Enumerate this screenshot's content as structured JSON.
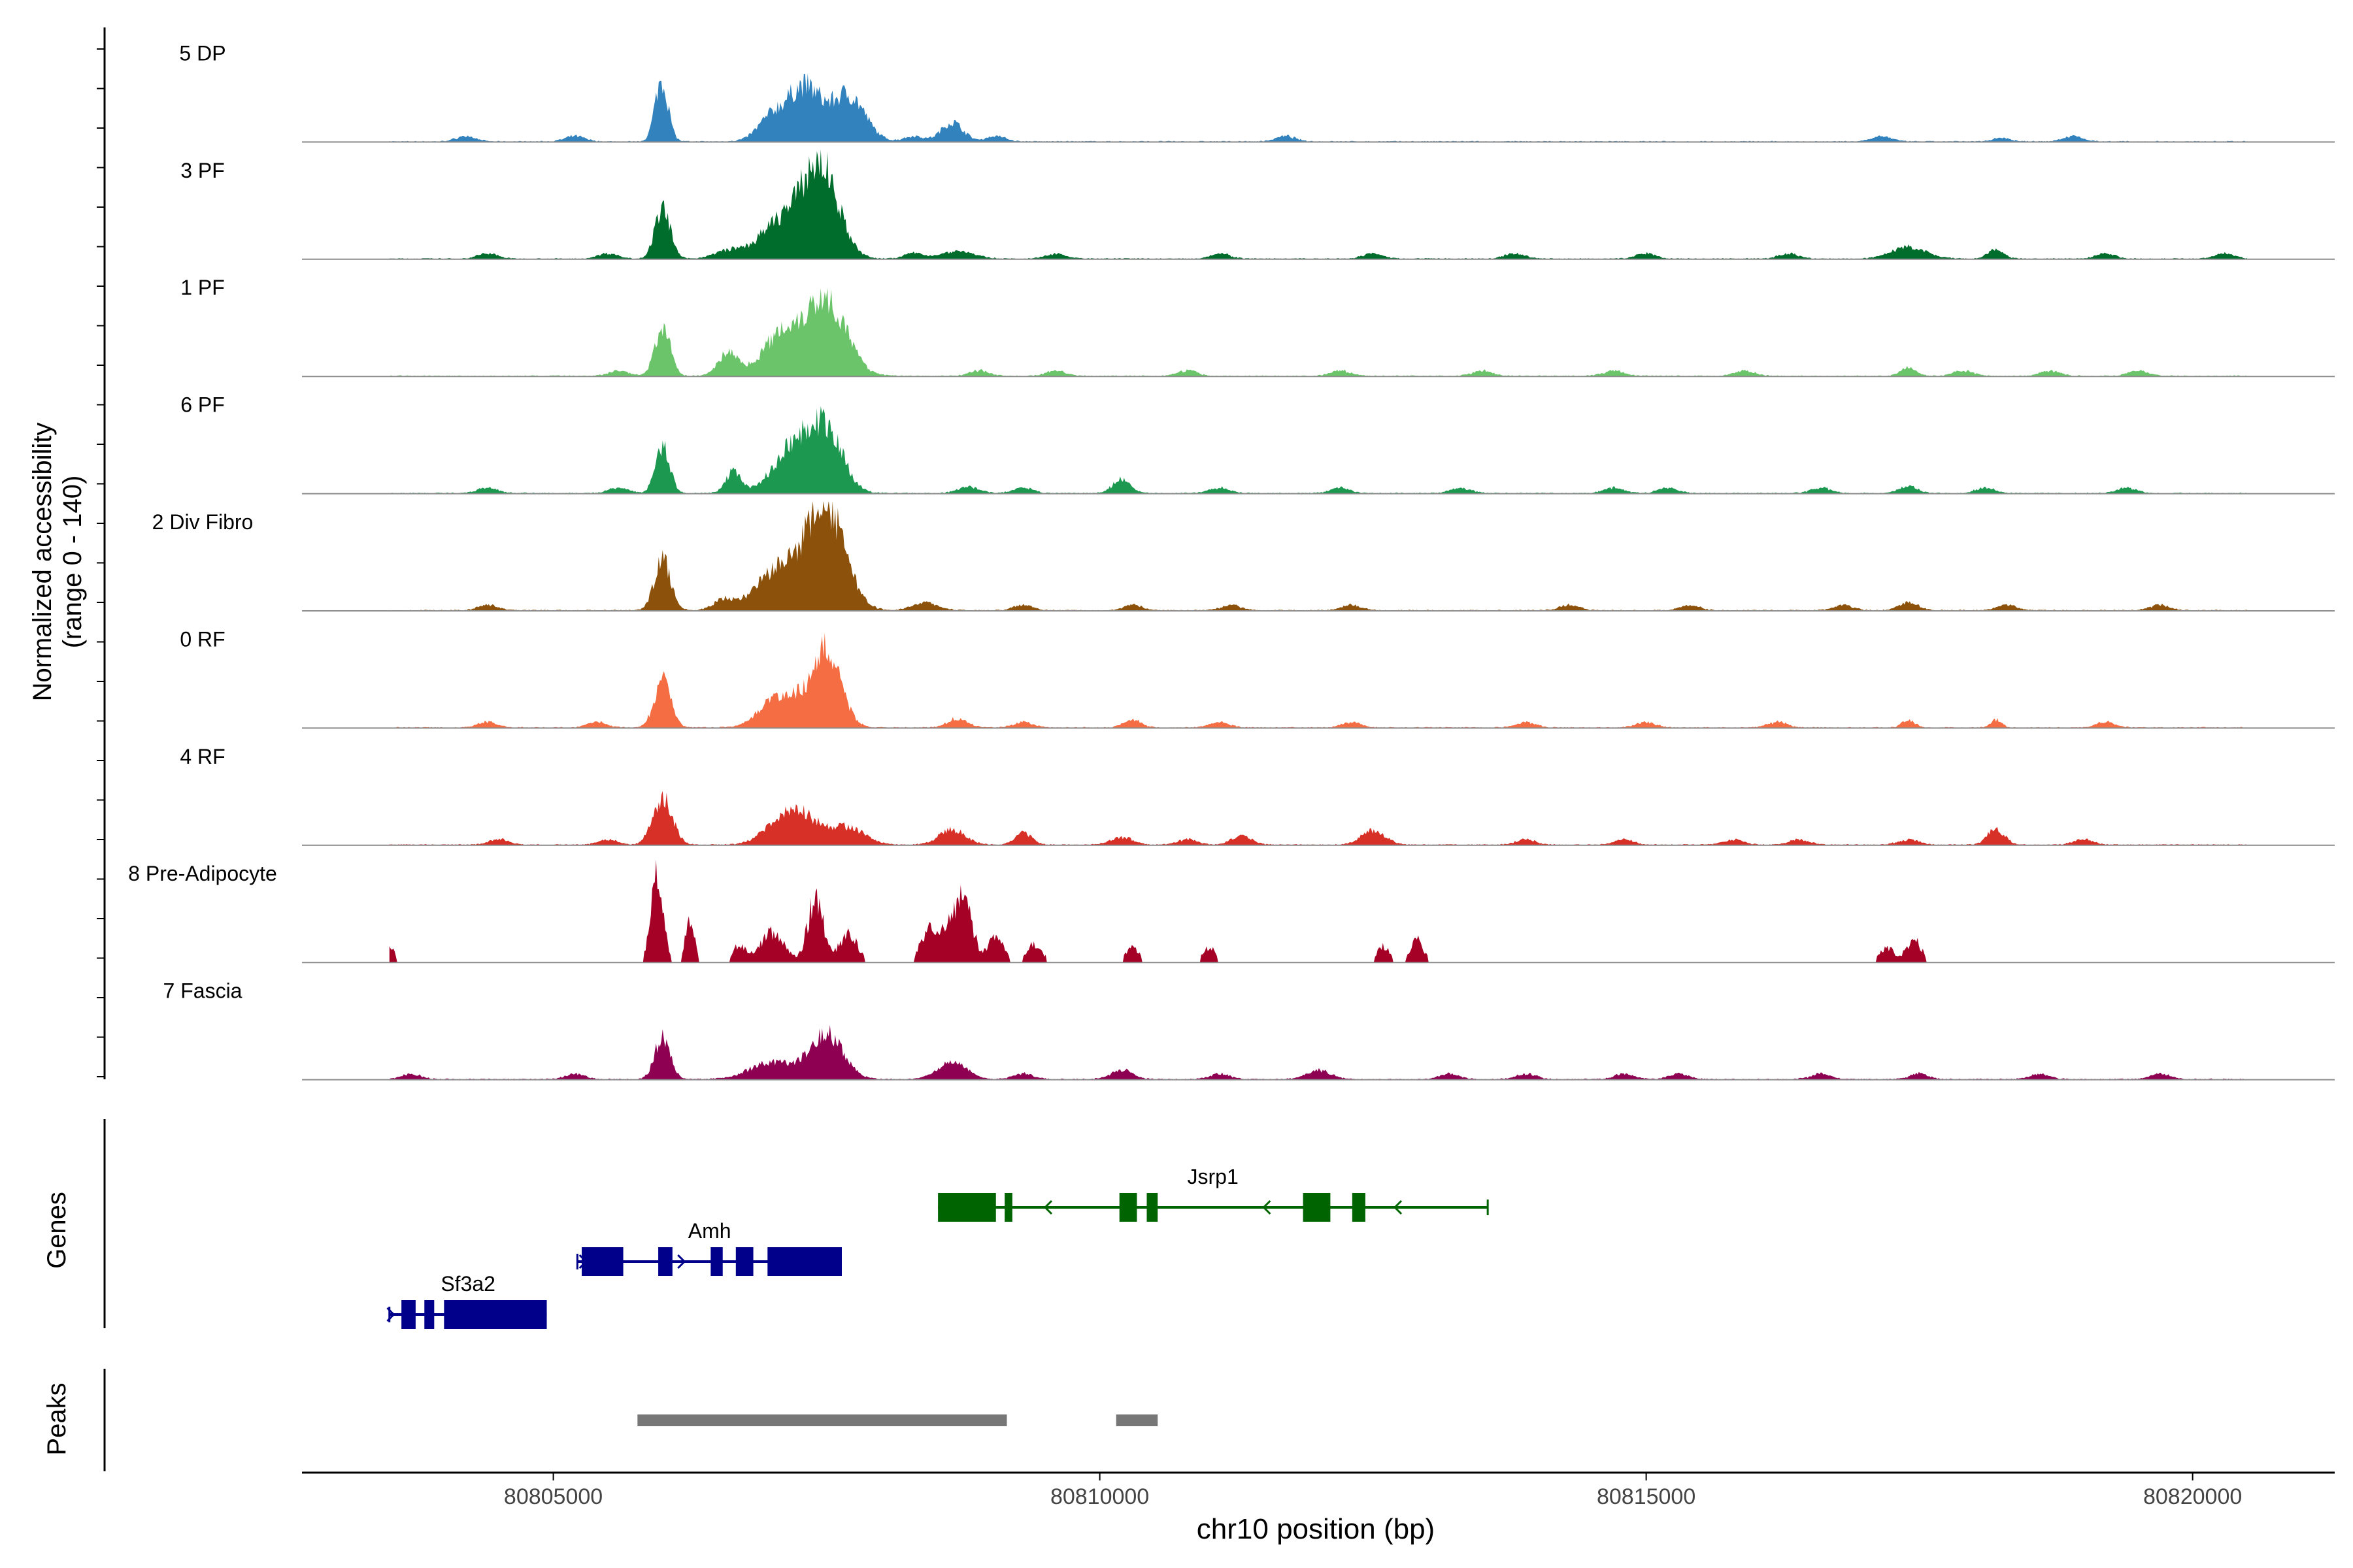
{
  "chart_data": {
    "type": "area",
    "title": "",
    "genome": "chr10",
    "xlabel": "chr10 position (bp)",
    "xlim": [
      80802700,
      80821300
    ],
    "xticks": [
      80805000,
      80810000,
      80815000,
      80820000
    ],
    "xtick_labels": [
      "80805000",
      "80810000",
      "80815000",
      "80820000"
    ],
    "coverage_ylabel": "Normalized accessibility",
    "coverage_ylabel_range": "(range 0 - 140)",
    "ylim": [
      0,
      140
    ],
    "genes_label": "Genes",
    "peaks_label": "Peaks",
    "tracks": [
      {
        "name": "5 DP",
        "color": "#3182BD",
        "peaks": [
          [
            80805990,
            80,
            60
          ],
          [
            80807000,
            30,
            130
          ],
          [
            80807300,
            70,
            150
          ],
          [
            80807700,
            60,
            150
          ],
          [
            80808650,
            25,
            100
          ],
          [
            80818250,
            5,
            80
          ]
        ],
        "bumps": [
          80804200,
          80805200,
          80808300,
          80809050,
          80811700,
          80817150,
          80818900
        ]
      },
      {
        "name": "3 PF",
        "color": "#006D2C",
        "peaks": [
          [
            80806000,
            65,
            70
          ],
          [
            80806600,
            10,
            130
          ],
          [
            80807100,
            50,
            200
          ],
          [
            80807450,
            115,
            160
          ],
          [
            80808700,
            10,
            150
          ],
          [
            80817400,
            15,
            160
          ],
          [
            80818200,
            12,
            70
          ]
        ],
        "bumps": [
          80804400,
          80805500,
          80808300,
          80809600,
          80811100,
          80812500,
          80813800,
          80815000,
          80816300,
          80819200,
          80820300
        ]
      },
      {
        "name": "1 PF",
        "color": "#6BC46A",
        "peaks": [
          [
            80806000,
            65,
            70
          ],
          [
            80806600,
            30,
            90
          ],
          [
            80807100,
            55,
            180
          ],
          [
            80807500,
            98,
            180
          ],
          [
            80817400,
            12,
            70
          ]
        ],
        "bumps": [
          80805600,
          80808900,
          80809600,
          80810800,
          80812200,
          80813500,
          80814700,
          80815900,
          80817900,
          80818700,
          80819500
        ]
      },
      {
        "name": "6 PF",
        "color": "#1C9850",
        "peaks": [
          [
            80806000,
            62,
            65
          ],
          [
            80806650,
            28,
            70
          ],
          [
            80807200,
            60,
            180
          ],
          [
            80807500,
            75,
            150
          ],
          [
            80810200,
            18,
            80
          ],
          [
            80808800,
            8,
            100
          ],
          [
            80817400,
            10,
            80
          ]
        ],
        "bumps": [
          80804400,
          80805600,
          80809300,
          80811100,
          80812200,
          80813300,
          80814700,
          80815200,
          80816600,
          80818100,
          80819400
        ]
      },
      {
        "name": "2 Div Fibro",
        "color": "#8C510A",
        "peaks": [
          [
            80806000,
            65,
            75
          ],
          [
            80807100,
            55,
            230
          ],
          [
            80807500,
            128,
            170
          ],
          [
            80806550,
            12,
            90
          ],
          [
            80808400,
            10,
            120
          ],
          [
            80817400,
            10,
            90
          ]
        ],
        "bumps": [
          80804400,
          80809300,
          80810300,
          80811200,
          80812300,
          80814300,
          80815400,
          80816800,
          80818300,
          80819700
        ]
      },
      {
        "name": "0 RF",
        "color": "#F46D43",
        "peaks": [
          [
            80806000,
            62,
            75
          ],
          [
            80807100,
            45,
            180
          ],
          [
            80807500,
            98,
            130
          ],
          [
            80808700,
            12,
            90
          ],
          [
            80810300,
            10,
            80
          ],
          [
            80817400,
            10,
            60
          ],
          [
            80818200,
            10,
            50
          ]
        ],
        "bumps": [
          80804400,
          80805400,
          80809300,
          80811100,
          80812300,
          80813900,
          80815000,
          80816200,
          80819200
        ]
      },
      {
        "name": "4 RF",
        "color": "#D73027",
        "peaks": [
          [
            80806000,
            60,
            90
          ],
          [
            80807200,
            48,
            200
          ],
          [
            80807700,
            22,
            150
          ],
          [
            80808650,
            20,
            120
          ],
          [
            80809300,
            15,
            80
          ],
          [
            80810200,
            10,
            100
          ],
          [
            80811300,
            12,
            90
          ],
          [
            80812500,
            18,
            110
          ],
          [
            80818200,
            20,
            80
          ]
        ],
        "bumps": [
          80804500,
          80805500,
          80810800,
          80813900,
          80814800,
          80815800,
          80816400,
          80817400,
          80819000
        ]
      },
      {
        "name": "8 Pre-Adipocyte",
        "color": "#A50026",
        "peaks": [
          [
            80803500,
            25,
            40
          ],
          [
            80805950,
            120,
            55
          ],
          [
            80806250,
            60,
            40
          ],
          [
            80806700,
            22,
            60
          ],
          [
            80807000,
            40,
            110
          ],
          [
            80807400,
            88,
            70
          ],
          [
            80807700,
            40,
            80
          ],
          [
            80808550,
            45,
            90
          ],
          [
            80808750,
            90,
            80
          ],
          [
            80808400,
            28,
            60
          ],
          [
            80809050,
            35,
            70
          ],
          [
            80809400,
            25,
            70
          ],
          [
            80810300,
            20,
            60
          ],
          [
            80811000,
            20,
            60
          ],
          [
            80812600,
            22,
            60
          ],
          [
            80812900,
            30,
            60
          ],
          [
            80817200,
            20,
            70
          ],
          [
            80817450,
            30,
            70
          ]
        ],
        "bumps": [
          80804100,
          80804700,
          80805550,
          80809900,
          80811300,
          80812200,
          80814300,
          80814600,
          80818600,
          80818900
        ]
      },
      {
        "name": "7 Fascia",
        "color": "#8E0152",
        "peaks": [
          [
            80806000,
            55,
            70
          ],
          [
            80807000,
            22,
            200
          ],
          [
            80807500,
            60,
            150
          ],
          [
            80808650,
            22,
            130
          ],
          [
            80810200,
            12,
            100
          ],
          [
            80812000,
            12,
            110
          ],
          [
            80817500,
            8,
            80
          ]
        ],
        "bumps": [
          80803700,
          80805200,
          80809300,
          80811100,
          80813200,
          80813900,
          80814800,
          80815300,
          80816600,
          80818600,
          80819700
        ]
      }
    ],
    "genes": [
      {
        "name": "Jsrp1",
        "color": "#006400",
        "strand": "-",
        "start": 80808520,
        "end": 80813550,
        "exons": [
          [
            80808520,
            80809050
          ],
          [
            80809130,
            80809200
          ],
          [
            80810180,
            80810340
          ],
          [
            80810430,
            80810530
          ],
          [
            80811860,
            80812110
          ],
          [
            80812310,
            80812430
          ]
        ],
        "arrows": [
          80809500,
          80811500,
          80812700
        ]
      },
      {
        "name": "Amh",
        "color": "#00008B",
        "strand": "+",
        "start": 80805220,
        "end": 80807640,
        "exons": [
          [
            80805260,
            80805640
          ],
          [
            80805960,
            80806090
          ],
          [
            80806440,
            80806550
          ],
          [
            80806670,
            80806830
          ],
          [
            80806960,
            80807640
          ]
        ],
        "arrows": [
          80805300,
          80806200
        ]
      },
      {
        "name": "Sf3a2",
        "color": "#00008B",
        "strand": "+",
        "start": 80803500,
        "end": 80804940,
        "exons": [
          [
            80803610,
            80803740
          ],
          [
            80803820,
            80803910
          ],
          [
            80804000,
            80804940
          ]
        ],
        "arrows": [
          80803540
        ]
      }
    ],
    "peaks": [
      [
        80805770,
        80809150
      ],
      [
        80810150,
        80810530
      ]
    ]
  }
}
